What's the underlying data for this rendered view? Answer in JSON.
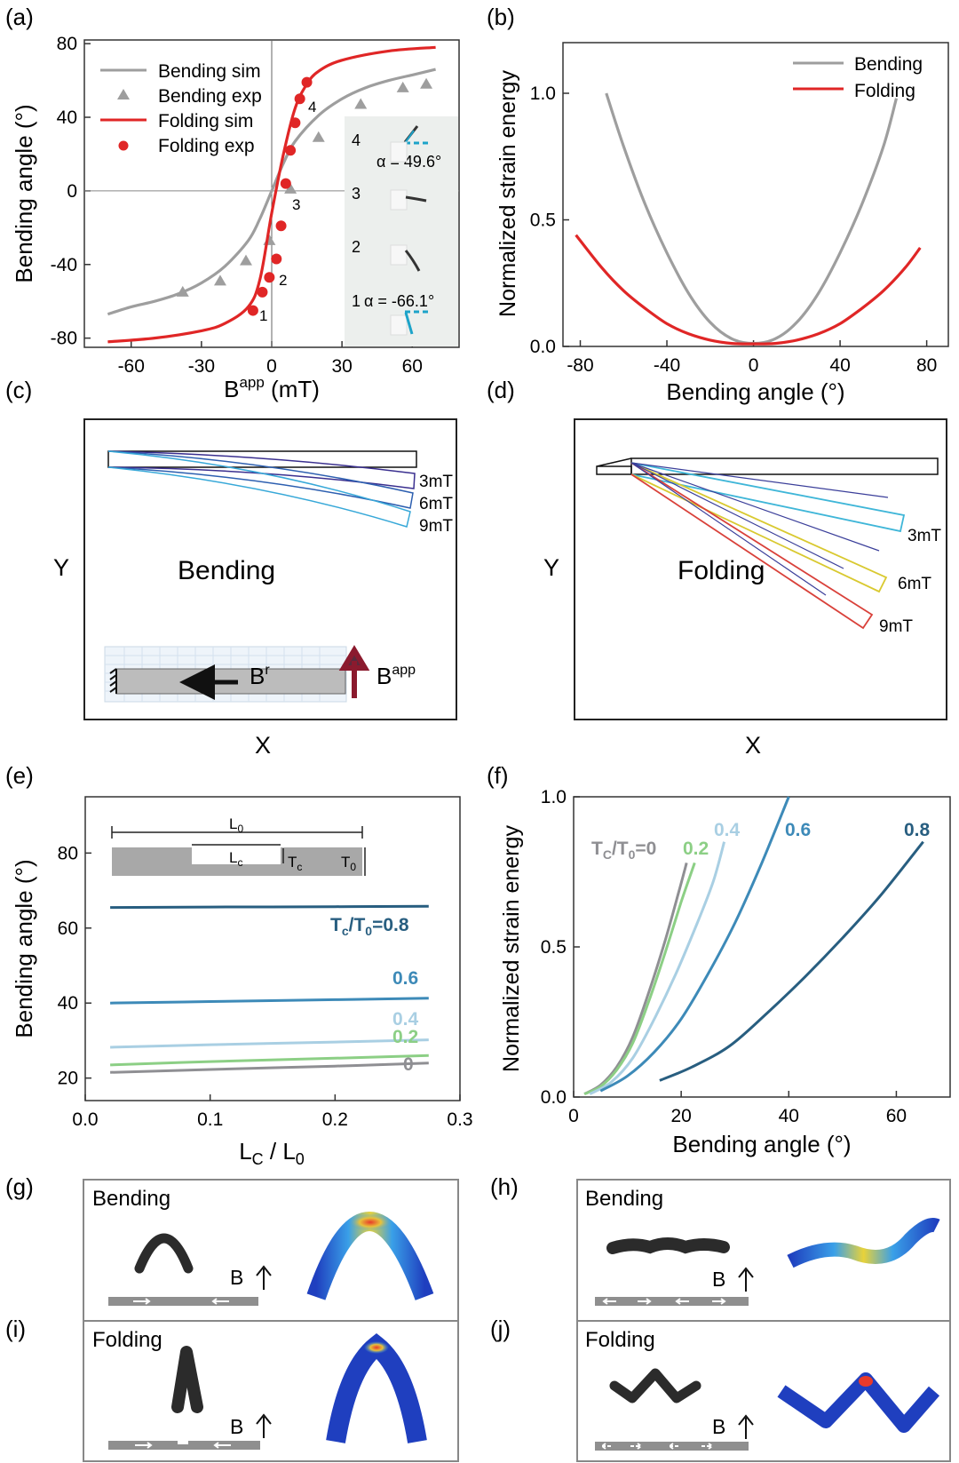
{
  "panel_letters": [
    "(a)",
    "(b)",
    "(c)",
    "(d)",
    "(e)",
    "(f)",
    "(g)",
    "(h)",
    "(i)",
    "(j)"
  ],
  "colors": {
    "bending": "#9e9e9e",
    "folding": "#e02626",
    "tc0": "#8f8f93",
    "tc02": "#8ccf85",
    "tc04": "#a9cfe3",
    "tc06": "#3d8ab8",
    "tc08": "#285e80"
  },
  "chart_data": [
    {
      "panel": "(a)",
      "type": "scatter",
      "title": "",
      "xlabel_main": "B",
      "xlabel_sup": "app",
      "xlabel_unit": " (mT)",
      "ylabel": "Bending angle (°)",
      "xlim": [
        -80,
        80
      ],
      "ylim": [
        -85,
        82
      ],
      "xticks": [
        -60,
        -30,
        0,
        30,
        60
      ],
      "yticks": [
        -80,
        -40,
        0,
        40,
        80
      ],
      "legend_position": "top-left",
      "series": [
        {
          "name": "Bending sim",
          "kind": "line",
          "color": "#9e9e9e",
          "x": [
            -70,
            -60,
            -50,
            -40,
            -30,
            -20,
            -10,
            -5,
            0,
            5,
            10,
            20,
            30,
            40,
            50,
            60,
            70
          ],
          "y": [
            -67,
            -63,
            -60,
            -56,
            -50,
            -41,
            -27,
            -15,
            0,
            15,
            27,
            41,
            50,
            56,
            60,
            63,
            66
          ]
        },
        {
          "name": "Bending exp",
          "kind": "triangle",
          "color": "#9e9e9e",
          "x": [
            -38,
            -22,
            -11,
            -1,
            8,
            20,
            38,
            56,
            66
          ],
          "y": [
            -55,
            -49,
            -38,
            -27,
            1,
            29,
            47,
            56,
            58
          ]
        },
        {
          "name": "Folding sim",
          "kind": "line",
          "color": "#e02626",
          "x": [
            -70,
            -50,
            -30,
            -20,
            -10,
            -5,
            0,
            5,
            10,
            15,
            20,
            30,
            50,
            70
          ],
          "y": [
            -82,
            -80,
            -76,
            -72,
            -63,
            -48,
            -12,
            20,
            45,
            58,
            65,
            71,
            76,
            78
          ]
        },
        {
          "name": "Folding exp",
          "kind": "circle",
          "color": "#e02626",
          "x": [
            -8,
            -4,
            -1,
            2,
            4,
            6,
            8,
            10,
            12,
            15
          ],
          "y": [
            -65,
            -55,
            -47,
            -37,
            -19,
            4,
            22,
            37,
            50,
            59
          ]
        }
      ],
      "point_labels": [
        "1",
        "2",
        "3",
        "4"
      ],
      "inset": {
        "labels": [
          "4",
          "3",
          "2",
          "1"
        ],
        "alpha_top": "α = 49.6°",
        "alpha_bottom": "α = -66.1°"
      }
    },
    {
      "panel": "(b)",
      "type": "line",
      "title": "",
      "xlabel": "Bending angle (°)",
      "ylabel": "Normalized strain energy",
      "xlim": [
        -88,
        90
      ],
      "ylim": [
        0,
        1.2
      ],
      "xticks": [
        -80,
        -40,
        0,
        40,
        80
      ],
      "yticks": [
        0.0,
        0.5,
        1.0
      ],
      "ytick_labels": [
        "0.0",
        "0.5",
        "1.0"
      ],
      "legend_position": "top-right",
      "series": [
        {
          "name": "Bending",
          "color": "#9e9e9e",
          "x": [
            -68,
            -60,
            -50,
            -40,
            -30,
            -20,
            -10,
            0,
            10,
            20,
            30,
            40,
            50,
            60,
            66
          ],
          "y": [
            1.0,
            0.79,
            0.56,
            0.37,
            0.21,
            0.095,
            0.03,
            0.012,
            0.03,
            0.095,
            0.21,
            0.37,
            0.56,
            0.79,
            0.98
          ]
        },
        {
          "name": "Folding",
          "color": "#e02626",
          "x": [
            -82,
            -70,
            -60,
            -50,
            -40,
            -30,
            -20,
            -10,
            0,
            10,
            20,
            30,
            40,
            50,
            60,
            70,
            77
          ],
          "y": [
            0.44,
            0.31,
            0.22,
            0.15,
            0.09,
            0.05,
            0.025,
            0.012,
            0.01,
            0.012,
            0.025,
            0.05,
            0.09,
            0.15,
            0.22,
            0.31,
            0.39
          ]
        }
      ]
    },
    {
      "panel": "(e)",
      "type": "line",
      "title": "",
      "xlabel_main": "L",
      "xlabel_sub": "C",
      "xlabel_mid": " / L",
      "xlabel_sub2": "0",
      "ylabel": "Bending angle (°)",
      "xlim": [
        0,
        0.3
      ],
      "ylim": [
        14,
        95
      ],
      "xticks": [
        0.0,
        0.1,
        0.2,
        0.3
      ],
      "xtick_labels": [
        "0.0",
        "0.1",
        "0.2",
        "0.3"
      ],
      "yticks": [
        20,
        40,
        60,
        80
      ],
      "series": [
        {
          "label": "0",
          "color": "#8f8f93",
          "x": [
            0.02,
            0.1,
            0.2,
            0.275
          ],
          "y": [
            21.5,
            22.3,
            23.2,
            24
          ]
        },
        {
          "label": "0.2",
          "color": "#8ccf85",
          "x": [
            0.02,
            0.1,
            0.2,
            0.275
          ],
          "y": [
            23.5,
            24.4,
            25.3,
            26
          ]
        },
        {
          "label": "0.4",
          "color": "#a9cfe3",
          "x": [
            0.02,
            0.1,
            0.2,
            0.275
          ],
          "y": [
            28.2,
            28.9,
            29.6,
            30.2
          ]
        },
        {
          "label": "0.6",
          "color": "#3d8ab8",
          "x": [
            0.02,
            0.1,
            0.2,
            0.275
          ],
          "y": [
            40,
            40.4,
            40.9,
            41.3
          ]
        },
        {
          "label": "Tc/T0=0.8",
          "color": "#285e80",
          "x": [
            0.02,
            0.1,
            0.2,
            0.275
          ],
          "y": [
            65.5,
            65.6,
            65.7,
            65.8
          ]
        }
      ],
      "inset_labels": {
        "L0_main": "L",
        "L0_sub": "0",
        "Lc_main": "L",
        "Lc_sub": "c",
        "Tc_main": "T",
        "Tc_sub": "c",
        "T0_main": "T",
        "T0_sub": "0"
      },
      "line_labels": {
        "main": "T",
        "sub1": "c",
        "mid": "/T",
        "sub2": "0",
        "value": "=0.8",
        "v06": "0.6",
        "v04": "0.4",
        "v02": "0.2",
        "v0": "0"
      }
    },
    {
      "panel": "(f)",
      "type": "line",
      "title": "",
      "xlabel": "Bending angle (°)",
      "ylabel": "Normalized strain energy",
      "xlim": [
        0,
        70
      ],
      "ylim": [
        0,
        1.0
      ],
      "xticks": [
        0,
        20,
        40,
        60
      ],
      "yticks": [
        0.0,
        0.5,
        1.0
      ],
      "ytick_labels": [
        "0.0",
        "0.5",
        "1.0"
      ],
      "series": [
        {
          "label": "0",
          "color": "#8f8f93",
          "x": [
            2,
            5,
            8,
            11,
            14,
            17,
            19.5,
            21
          ],
          "y": [
            0.01,
            0.04,
            0.1,
            0.2,
            0.35,
            0.52,
            0.68,
            0.78
          ]
        },
        {
          "label": "0.2",
          "color": "#8ccf85",
          "x": [
            2,
            5,
            8,
            11,
            14,
            17,
            20,
            22.5
          ],
          "y": [
            0.01,
            0.035,
            0.09,
            0.18,
            0.32,
            0.48,
            0.65,
            0.78
          ]
        },
        {
          "label": "0.4",
          "color": "#a9cfe3",
          "x": [
            3,
            7,
            11,
            15,
            19,
            23,
            26,
            28
          ],
          "y": [
            0.01,
            0.05,
            0.13,
            0.26,
            0.41,
            0.58,
            0.72,
            0.85
          ]
        },
        {
          "label": "0.6",
          "color": "#3d8ab8",
          "x": [
            5,
            10,
            15,
            20,
            25,
            30,
            35,
            40
          ],
          "y": [
            0.02,
            0.07,
            0.15,
            0.26,
            0.41,
            0.58,
            0.78,
            1.0
          ]
        },
        {
          "label": "0.8",
          "color": "#285e80",
          "x": [
            16,
            22,
            29,
            36,
            43,
            50,
            57,
            65
          ],
          "y": [
            0.055,
            0.1,
            0.17,
            0.28,
            0.4,
            0.53,
            0.67,
            0.85
          ]
        }
      ],
      "curve_labels": {
        "main": "T",
        "sub1": "C",
        "mid": "/T",
        "sub2": "0",
        "first": "=0",
        "v02": "0.2",
        "v04": "0.4",
        "v06": "0.6",
        "v08": "0.8"
      }
    }
  ],
  "panel_c": {
    "ylabel": "Y",
    "xlabel": "X",
    "title": "Bending",
    "fields": [
      "3mT",
      "6mT",
      "9mT"
    ],
    "Br_main": "B",
    "Br_sup": "r",
    "Bapp_main": "B",
    "Bapp_sup": "app"
  },
  "panel_d": {
    "ylabel": "Y",
    "xlabel": "X",
    "title": "Folding",
    "fields": [
      "3mT",
      "6mT",
      "9mT"
    ]
  },
  "panel_g": {
    "label": "Bending",
    "field": "B"
  },
  "panel_h": {
    "label": "Bending",
    "field": "B"
  },
  "panel_i": {
    "label": "Folding",
    "field": "B"
  },
  "panel_j": {
    "label": "Folding",
    "field": "B"
  }
}
